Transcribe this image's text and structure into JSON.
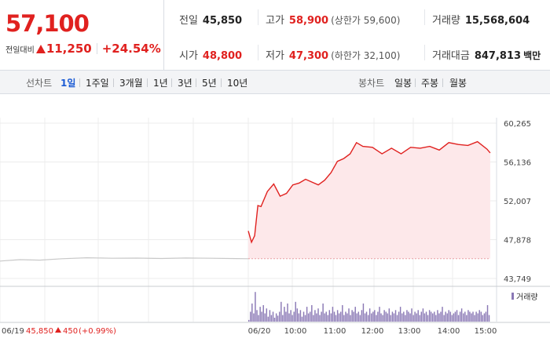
{
  "quote": {
    "price": "57,100",
    "change_label": "전일대비",
    "change": "11,250",
    "change_pct": "+24.54%",
    "stats": [
      {
        "key": "전일",
        "value": "45,850",
        "dir": "none",
        "sub": ""
      },
      {
        "key": "고가",
        "value": "58,900",
        "dir": "up",
        "sub": "(상한가 59,600)"
      },
      {
        "key": "거래량",
        "value": "15,568,604",
        "dir": "none",
        "sub": ""
      },
      {
        "key": "시가",
        "value": "48,800",
        "dir": "up",
        "sub": ""
      },
      {
        "key": "저가",
        "value": "47,300",
        "dir": "up",
        "sub": "(하한가 32,100)"
      },
      {
        "key": "거래대금",
        "value": "847,813",
        "dir": "none",
        "sub": "백만"
      }
    ]
  },
  "tabs": {
    "line_header": "선차트",
    "line_options": [
      "1일",
      "1주일",
      "3개월",
      "1년",
      "3년",
      "5년",
      "10년"
    ],
    "line_active": "1일",
    "candle_header": "봉차트",
    "candle_options": [
      "일봉",
      "주봉",
      "월봉"
    ]
  },
  "colors": {
    "up": "#e0211f",
    "down": "#1b5bd4",
    "prev_line": "#c8c8c8",
    "fill": "#fde8ea",
    "volume": "#8a78b5"
  },
  "chart_data": {
    "type": "line",
    "title": "",
    "y_ticks": [
      "60,265",
      "56,136",
      "52,007",
      "47,878",
      "43,749"
    ],
    "ylim": [
      43749,
      60265
    ],
    "x_ticks_today": [
      "06/20",
      "10:00",
      "11:00",
      "12:00",
      "13:00",
      "14:00",
      "15:00"
    ],
    "time_range": [
      "09:00",
      "15:30"
    ],
    "previous_close": 45850,
    "previous_day": {
      "date": "06/19",
      "close": "45,850",
      "change": "450",
      "change_pct": "(+0.99%)",
      "x": [
        0,
        0.08,
        0.16,
        0.25,
        0.35,
        0.45,
        0.55,
        0.65,
        0.75,
        0.85,
        0.95,
        1.0
      ],
      "values": [
        45600,
        45750,
        45700,
        45850,
        45950,
        45900,
        45920,
        45880,
        45930,
        45900,
        45870,
        45850
      ]
    },
    "series": [
      {
        "x": [
          "09:00",
          "09:05",
          "09:10",
          "09:15",
          "09:20",
          "09:30",
          "09:40",
          "09:50",
          "10:00",
          "10:10",
          "10:20",
          "10:30",
          "10:40",
          "10:50",
          "11:00",
          "11:10",
          "11:20",
          "11:30",
          "11:40",
          "11:50",
          "12:00",
          "12:15",
          "12:30",
          "12:45",
          "13:00",
          "13:15",
          "13:30",
          "13:45",
          "14:00",
          "14:15",
          "14:30",
          "14:45",
          "15:00",
          "15:15",
          "15:20"
        ],
        "values": [
          48800,
          47600,
          48300,
          51500,
          51400,
          53000,
          53800,
          52500,
          52800,
          53700,
          53900,
          54300,
          54000,
          53700,
          54200,
          55000,
          56200,
          56500,
          57000,
          58200,
          57800,
          57700,
          57000,
          57600,
          57000,
          57700,
          57600,
          57800,
          57400,
          58200,
          58000,
          57900,
          58300,
          57500,
          57100
        ]
      }
    ],
    "volume_label": "거래량",
    "volume": [
      0.05,
      0.3,
      0.55,
      0.25,
      0.9,
      0.35,
      0.2,
      0.45,
      0.3,
      0.5,
      0.25,
      0.4,
      0.15,
      0.35,
      0.2,
      0.3,
      0.12,
      0.25,
      0.18,
      0.3,
      0.6,
      0.2,
      0.45,
      0.3,
      0.55,
      0.25,
      0.35,
      0.2,
      0.3,
      0.6,
      0.4,
      0.25,
      0.35,
      0.15,
      0.3,
      0.2,
      0.45,
      0.25,
      0.3,
      0.5,
      0.2,
      0.35,
      0.25,
      0.4,
      0.2,
      0.3,
      0.55,
      0.25,
      0.3,
      0.2,
      0.35,
      0.25,
      0.45,
      0.3,
      0.2,
      0.35,
      0.25,
      0.3,
      0.5,
      0.2,
      0.3,
      0.25,
      0.4,
      0.2,
      0.35,
      0.3,
      0.45,
      0.25,
      0.3,
      0.2,
      0.35,
      0.55,
      0.25,
      0.3,
      0.2,
      0.4,
      0.25,
      0.3,
      0.35,
      0.2,
      0.3,
      0.45,
      0.25,
      0.2,
      0.35,
      0.3,
      0.25,
      0.4,
      0.2,
      0.3,
      0.25,
      0.35,
      0.2,
      0.3,
      0.45,
      0.25,
      0.3,
      0.2,
      0.35,
      0.3,
      0.25,
      0.4,
      0.2,
      0.3,
      0.25,
      0.35,
      0.2,
      0.3,
      0.4,
      0.25,
      0.3,
      0.2,
      0.35,
      0.3,
      0.25,
      0.3,
      0.2,
      0.35,
      0.25,
      0.3,
      0.45,
      0.2,
      0.3,
      0.25,
      0.35,
      0.3,
      0.2,
      0.25,
      0.3,
      0.35,
      0.2,
      0.3,
      0.4,
      0.25,
      0.3,
      0.2,
      0.35,
      0.3,
      0.25,
      0.3,
      0.2,
      0.3,
      0.25,
      0.35,
      0.3,
      0.2,
      0.25,
      0.3,
      0.5,
      0.2
    ]
  }
}
